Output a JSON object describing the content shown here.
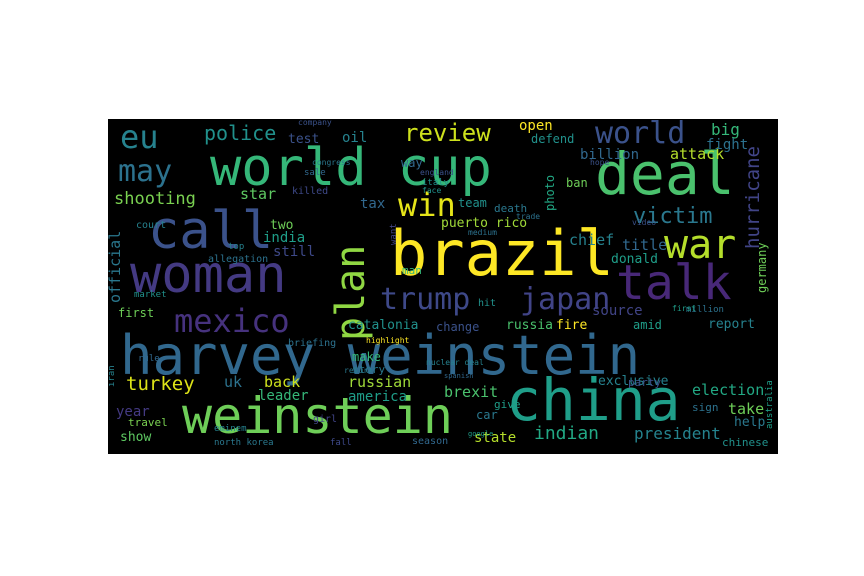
{
  "words": [
    {
      "text": "harvey weinstein",
      "color": "#31688e"
    },
    {
      "text": "world cup",
      "color": "#35b779"
    },
    {
      "text": "brazil",
      "color": "#fde725"
    },
    {
      "text": "china",
      "color": "#1f9e89"
    },
    {
      "text": "weinstein",
      "color": "#6ece58"
    },
    {
      "text": "deal",
      "color": "#4ac16d"
    },
    {
      "text": "woman",
      "color": "#443a83"
    },
    {
      "text": "call",
      "color": "#3b528b"
    },
    {
      "text": "talk",
      "color": "#482878"
    },
    {
      "text": "war",
      "color": "#b5de2b"
    },
    {
      "text": "plan",
      "color": "#90d743"
    },
    {
      "text": "trump",
      "color": "#3e4989"
    },
    {
      "text": "japan",
      "color": "#414487"
    },
    {
      "text": "win",
      "color": "#e5e419"
    },
    {
      "text": "mexico",
      "color": "#46327e"
    },
    {
      "text": "eu",
      "color": "#26828e"
    },
    {
      "text": "may",
      "color": "#2c728e"
    },
    {
      "text": "world",
      "color": "#3b528b"
    },
    {
      "text": "review",
      "color": "#cde11d"
    },
    {
      "text": "victim",
      "color": "#2a788e"
    },
    {
      "text": "police",
      "color": "#21918c"
    },
    {
      "text": "indian",
      "color": "#22a884"
    },
    {
      "text": "president",
      "color": "#25838e"
    },
    {
      "text": "turkey",
      "color": "#dde318"
    },
    {
      "text": "shooting",
      "color": "#7ad151"
    },
    {
      "text": "hurricane",
      "color": "#414487"
    },
    {
      "text": "attack",
      "color": "#b5de2b"
    },
    {
      "text": "billion",
      "color": "#31688e"
    },
    {
      "text": "open",
      "color": "#fde725"
    },
    {
      "text": "big",
      "color": "#35b779"
    },
    {
      "text": "fight",
      "color": "#2c728e"
    },
    {
      "text": "oil",
      "color": "#26828e"
    },
    {
      "text": "test",
      "color": "#3b528b"
    },
    {
      "text": "defend",
      "color": "#21918c"
    },
    {
      "text": "star",
      "color": "#5ec962"
    },
    {
      "text": "tax",
      "color": "#31688e"
    },
    {
      "text": "india",
      "color": "#1f9e89"
    },
    {
      "text": "two",
      "color": "#6ece58"
    },
    {
      "text": "still",
      "color": "#3e4989"
    },
    {
      "text": "puerto rico",
      "color": "#a0da39"
    },
    {
      "text": "chief",
      "color": "#26828e"
    },
    {
      "text": "ban",
      "color": "#6ece58"
    },
    {
      "text": "title",
      "color": "#31688e"
    },
    {
      "text": "donald",
      "color": "#1f9e89"
    },
    {
      "text": "official",
      "color": "#2a788e"
    },
    {
      "text": "germany",
      "color": "#6ece58"
    },
    {
      "text": "catalonia",
      "color": "#21918c"
    },
    {
      "text": "change",
      "color": "#3b528b"
    },
    {
      "text": "russia",
      "color": "#4ac16d"
    },
    {
      "text": "fire",
      "color": "#fde725"
    },
    {
      "text": "source",
      "color": "#414487"
    },
    {
      "text": "report",
      "color": "#26828e"
    },
    {
      "text": "amid",
      "color": "#1f9e89"
    },
    {
      "text": "million",
      "color": "#2c728e"
    },
    {
      "text": "first",
      "color": "#6ece58"
    },
    {
      "text": "make",
      "color": "#35b779"
    },
    {
      "text": "story",
      "color": "#2a788e"
    },
    {
      "text": "uk",
      "color": "#2c728e"
    },
    {
      "text": "back",
      "color": "#cde11d"
    },
    {
      "text": "russian",
      "color": "#a0da39"
    },
    {
      "text": "exclusive",
      "color": "#26828e"
    },
    {
      "text": "election",
      "color": "#22a884"
    },
    {
      "text": "year",
      "color": "#443a83"
    },
    {
      "text": "leader",
      "color": "#35b779"
    },
    {
      "text": "america",
      "color": "#1f9e89"
    },
    {
      "text": "brexit",
      "color": "#4ac16d"
    },
    {
      "text": "take",
      "color": "#6ece58"
    },
    {
      "text": "help",
      "color": "#2a788e"
    },
    {
      "text": "show",
      "color": "#5ec962"
    },
    {
      "text": "state",
      "color": "#b5de2b"
    },
    {
      "text": "chinese",
      "color": "#21918c"
    },
    {
      "text": "travel",
      "color": "#7ad151"
    },
    {
      "text": "car",
      "color": "#2a788e"
    },
    {
      "text": "give",
      "color": "#1f9e89"
    },
    {
      "text": "sign",
      "color": "#2c728e"
    },
    {
      "text": "party",
      "color": "#3b528b"
    },
    {
      "text": "team",
      "color": "#21918c"
    },
    {
      "text": "photo",
      "color": "#22a884"
    },
    {
      "text": "way",
      "color": "#31688e"
    },
    {
      "text": "man",
      "color": "#35b779"
    },
    {
      "text": "death",
      "color": "#2a788e"
    },
    {
      "text": "killed",
      "color": "#3e4989"
    },
    {
      "text": "court",
      "color": "#26828e"
    },
    {
      "text": "allegation",
      "color": "#2c728e"
    },
    {
      "text": "hit",
      "color": "#21918c"
    },
    {
      "text": "company",
      "color": "#3b528b"
    },
    {
      "text": "north korea",
      "color": "#2a788e"
    },
    {
      "text": "season",
      "color": "#31688e"
    },
    {
      "text": "girl",
      "color": "#414487"
    },
    {
      "text": "fall",
      "color": "#3e4989"
    },
    {
      "text": "briefing",
      "color": "#2c728e"
    },
    {
      "text": "market",
      "color": "#21918c"
    },
    {
      "text": "rule",
      "color": "#31688e"
    },
    {
      "text": "top",
      "color": "#26828e"
    },
    {
      "text": "congress",
      "color": "#2a788e"
    },
    {
      "text": "italy",
      "color": "#21918c"
    },
    {
      "text": "england",
      "color": "#3b528b"
    },
    {
      "text": "sale",
      "color": "#31688e"
    },
    {
      "text": "eminem",
      "color": "#26828e"
    },
    {
      "text": "australia",
      "color": "#1f9e89"
    },
    {
      "text": "medium",
      "color": "#2c728e"
    },
    {
      "text": "highlight",
      "color": "#fde725"
    },
    {
      "text": "face",
      "color": "#21918c"
    },
    {
      "text": "video",
      "color": "#3b528b"
    },
    {
      "text": "iran",
      "color": "#26828e"
    },
    {
      "text": "return",
      "color": "#2a788e"
    },
    {
      "text": "spanish",
      "color": "#31688e"
    },
    {
      "text": "google",
      "color": "#1f9e89"
    },
    {
      "text": "want",
      "color": "#414487"
    },
    {
      "text": "trade",
      "color": "#2c728e"
    },
    {
      "text": "first",
      "color": "#1f9e89"
    },
    {
      "text": "hope",
      "color": "#3b528b"
    },
    {
      "text": "nuclear deal",
      "color": "#26828e"
    }
  ]
}
